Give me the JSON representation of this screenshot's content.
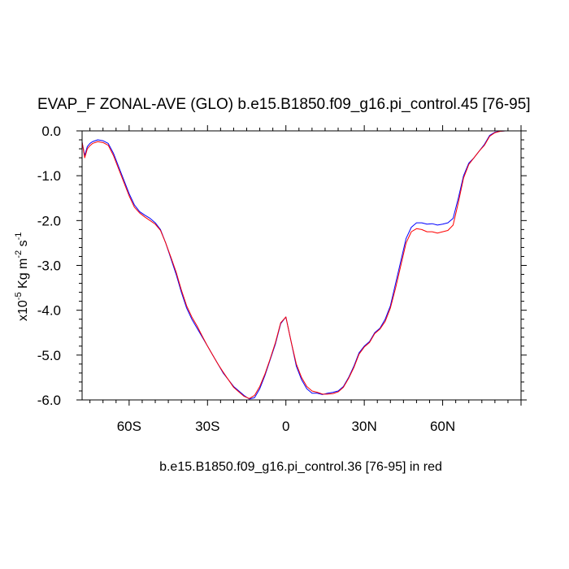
{
  "chart_data": {
    "type": "line",
    "title": "EVAP_F ZONAL-AVE (GLO) b.e15.B1850.f09_g16.pi_control.45 [76-95]",
    "ylabel": {
      "prefix": "x10",
      "exp1": "-5",
      "mid1": " Kg m",
      "exp2": "-2",
      "mid2": " s",
      "exp3": "-1"
    },
    "xlabel": "b.e15.B1850.f09_g16.pi_control.36 [76-95] in red",
    "xlim": [
      -78,
      90
    ],
    "ylim": [
      -6.0,
      0.0
    ],
    "x_ticks": [
      {
        "value": -60,
        "label": "60S"
      },
      {
        "value": -30,
        "label": "30S"
      },
      {
        "value": 0,
        "label": "0"
      },
      {
        "value": 30,
        "label": "30N"
      },
      {
        "value": 60,
        "label": "60N"
      }
    ],
    "y_ticks": [
      {
        "value": 0.0,
        "label": "0.0"
      },
      {
        "value": -1.0,
        "label": "-1.0"
      },
      {
        "value": -2.0,
        "label": "-2.0"
      },
      {
        "value": -3.0,
        "label": "-3.0"
      },
      {
        "value": -4.0,
        "label": "-4.0"
      },
      {
        "value": -5.0,
        "label": "-5.0"
      },
      {
        "value": -6.0,
        "label": "-6.0"
      }
    ],
    "series": [
      {
        "color": "#0000ff",
        "x": [
          -78,
          -77,
          -76,
          -75,
          -74,
          -72,
          -70,
          -68,
          -66,
          -64,
          -62,
          -60,
          -58,
          -56,
          -54,
          -52,
          -50,
          -48,
          -46,
          -44,
          -42,
          -40,
          -38,
          -36,
          -34,
          -32,
          -30,
          -28,
          -26,
          -24,
          -22,
          -20,
          -18,
          -16,
          -14,
          -12,
          -10,
          -8,
          -6,
          -4,
          -2,
          0,
          2,
          4,
          6,
          8,
          10,
          12,
          14,
          16,
          18,
          20,
          22,
          24,
          26,
          28,
          30,
          32,
          34,
          36,
          38,
          40,
          42,
          44,
          46,
          48,
          50,
          52,
          54,
          56,
          58,
          60,
          62,
          64,
          66,
          68,
          70,
          72,
          74,
          76,
          78,
          80,
          82,
          84,
          86,
          88,
          90
        ],
        "y": [
          -0.25,
          -0.55,
          -0.35,
          -0.28,
          -0.24,
          -0.2,
          -0.22,
          -0.28,
          -0.5,
          -0.8,
          -1.1,
          -1.4,
          -1.65,
          -1.8,
          -1.88,
          -1.95,
          -2.05,
          -2.2,
          -2.5,
          -2.85,
          -3.2,
          -3.6,
          -3.95,
          -4.2,
          -4.4,
          -4.6,
          -4.8,
          -5.0,
          -5.2,
          -5.4,
          -5.55,
          -5.7,
          -5.8,
          -5.9,
          -5.98,
          -5.95,
          -5.75,
          -5.45,
          -5.1,
          -4.75,
          -4.3,
          -4.15,
          -4.7,
          -5.25,
          -5.55,
          -5.75,
          -5.85,
          -5.85,
          -5.88,
          -5.85,
          -5.83,
          -5.8,
          -5.7,
          -5.5,
          -5.25,
          -4.95,
          -4.8,
          -4.7,
          -4.5,
          -4.4,
          -4.2,
          -3.9,
          -3.4,
          -2.9,
          -2.4,
          -2.15,
          -2.05,
          -2.05,
          -2.08,
          -2.07,
          -2.1,
          -2.08,
          -2.05,
          -1.95,
          -1.5,
          -1.0,
          -0.72,
          -0.6,
          -0.45,
          -0.3,
          -0.1,
          -0.03,
          -0.01,
          0.0,
          0.0,
          0.0,
          0.0
        ]
      },
      {
        "color": "#ff0000",
        "x": [
          -78,
          -77,
          -76,
          -75,
          -74,
          -72,
          -70,
          -68,
          -66,
          -64,
          -62,
          -60,
          -58,
          -56,
          -54,
          -52,
          -50,
          -48,
          -46,
          -44,
          -42,
          -40,
          -38,
          -36,
          -34,
          -32,
          -30,
          -28,
          -26,
          -24,
          -22,
          -20,
          -18,
          -16,
          -14,
          -12,
          -10,
          -8,
          -6,
          -4,
          -2,
          0,
          2,
          4,
          6,
          8,
          10,
          12,
          14,
          16,
          18,
          20,
          22,
          24,
          26,
          28,
          30,
          32,
          34,
          36,
          38,
          40,
          42,
          44,
          46,
          48,
          50,
          52,
          54,
          56,
          58,
          60,
          62,
          64,
          66,
          68,
          70,
          72,
          74,
          76,
          78,
          80,
          82,
          84,
          86,
          88,
          90
        ],
        "y": [
          -0.25,
          -0.6,
          -0.4,
          -0.33,
          -0.28,
          -0.24,
          -0.26,
          -0.32,
          -0.55,
          -0.85,
          -1.15,
          -1.45,
          -1.7,
          -1.83,
          -1.92,
          -2.0,
          -2.08,
          -2.22,
          -2.5,
          -2.82,
          -3.15,
          -3.55,
          -3.9,
          -4.15,
          -4.35,
          -4.58,
          -4.8,
          -5.0,
          -5.2,
          -5.38,
          -5.55,
          -5.72,
          -5.82,
          -5.92,
          -5.97,
          -5.9,
          -5.7,
          -5.42,
          -5.08,
          -4.72,
          -4.28,
          -4.15,
          -4.7,
          -5.2,
          -5.5,
          -5.7,
          -5.8,
          -5.83,
          -5.87,
          -5.87,
          -5.86,
          -5.82,
          -5.72,
          -5.52,
          -5.28,
          -4.98,
          -4.82,
          -4.72,
          -4.52,
          -4.42,
          -4.25,
          -3.95,
          -3.5,
          -3.0,
          -2.5,
          -2.25,
          -2.18,
          -2.2,
          -2.25,
          -2.25,
          -2.28,
          -2.25,
          -2.22,
          -2.1,
          -1.6,
          -1.05,
          -0.75,
          -0.6,
          -0.45,
          -0.32,
          -0.12,
          -0.04,
          -0.01,
          0.0,
          0.0,
          0.0,
          0.0
        ]
      }
    ]
  }
}
